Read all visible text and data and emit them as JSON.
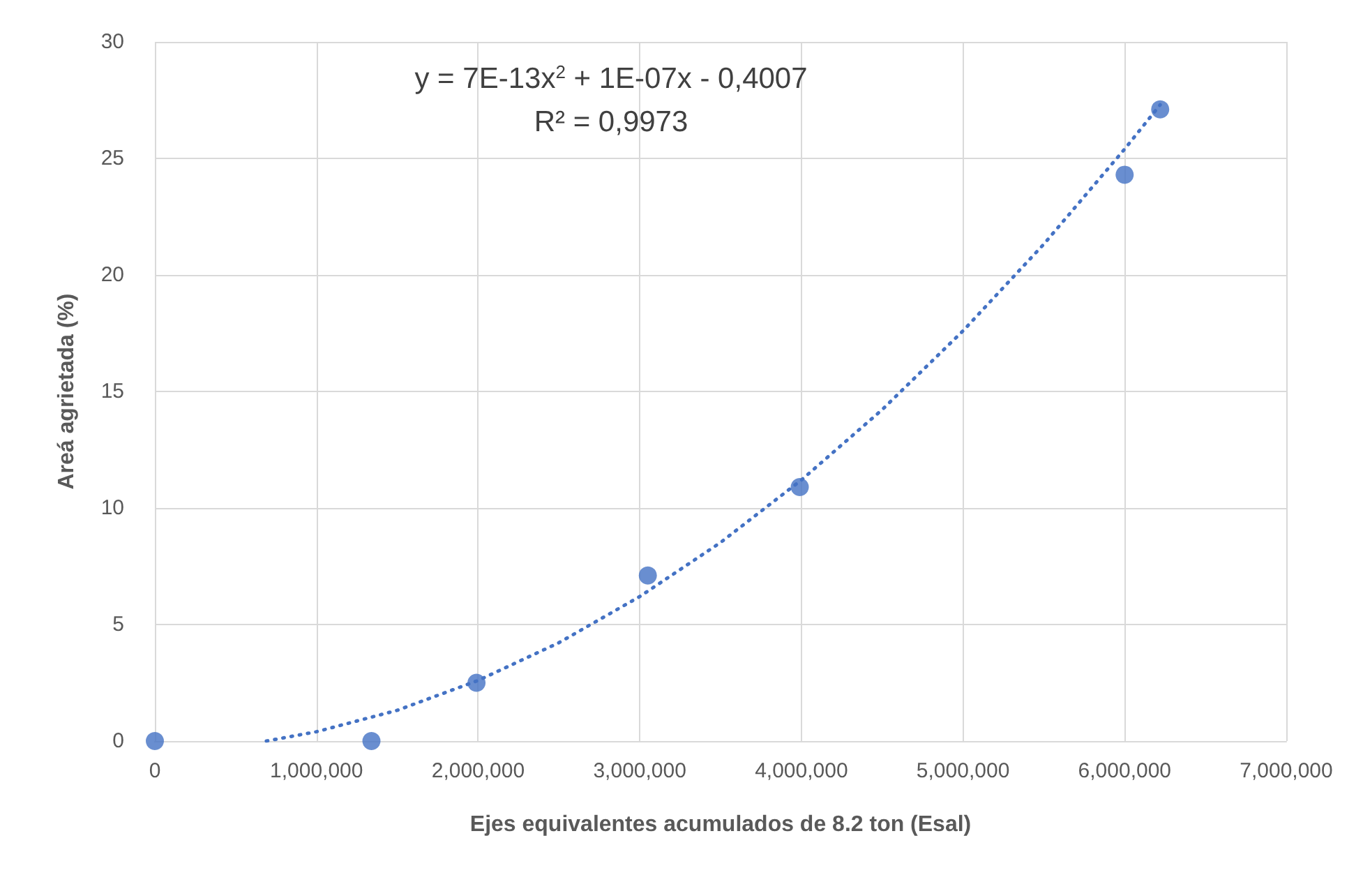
{
  "chart_data": {
    "type": "scatter",
    "xlabel": "Ejes equivalentes acumulados de 8.2 ton (Esal)",
    "ylabel": "Areá agrietada (%)",
    "annotations": [
      "y = 7E-13x$^{2}$ + 1E-07x - 0,4007",
      "R² = 0,9973"
    ],
    "x": [
      0,
      1340000,
      1990000,
      3050000,
      3990000,
      6000000,
      6220000
    ],
    "series": [
      {
        "color": "#4472c4",
        "marker": "circle",
        "values": [
          0,
          0,
          2.5,
          7.1,
          10.9,
          24.3,
          27.1
        ]
      },
      {
        "type": "line",
        "color": "#4472c4",
        "marker": "none",
        "line_style": "dotted",
        "x": [
          690000,
          1000000,
          1500000,
          2000000,
          2500000,
          3000000,
          3500000,
          4000000,
          4500000,
          5000000,
          5500000,
          6000000,
          6220000
        ],
        "values": [
          0,
          0.4,
          1.32,
          2.6,
          4.22,
          6.2,
          8.52,
          11.2,
          14.22,
          17.6,
          21.32,
          25.4,
          27.3
        ]
      }
    ],
    "xlim": [
      0,
      7000000
    ],
    "xticks": [
      0,
      {
        "value": 1000000,
        "label": "1,000,000"
      },
      {
        "value": 2000000,
        "label": "2,000,000"
      },
      {
        "value": 3000000,
        "label": "3,000,000"
      },
      {
        "value": 4000000,
        "label": "4,000,000"
      },
      {
        "value": 5000000,
        "label": "5,000,000"
      },
      {
        "value": 6000000,
        "label": "6,000,000"
      },
      {
        "value": 7000000,
        "label": "7,000,000"
      }
    ],
    "ylim": [
      0,
      30
    ],
    "yticks": [
      0,
      5,
      10,
      15,
      20,
      25,
      30
    ],
    "grid": true
  }
}
